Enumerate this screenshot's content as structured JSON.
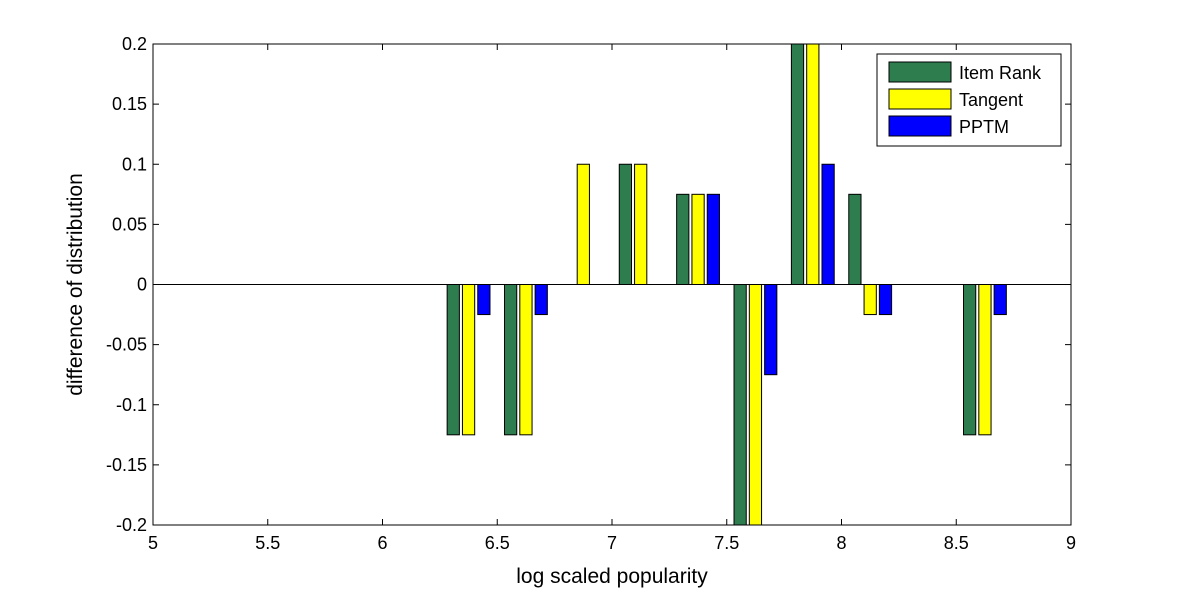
{
  "chart_data": {
    "type": "bar",
    "title": "",
    "xlabel": "log scaled popularity",
    "ylabel": "difference of distribution",
    "xlim": [
      5,
      9
    ],
    "ylim": [
      -0.2,
      0.2
    ],
    "xticks": [
      5,
      5.5,
      6,
      6.5,
      7,
      7.5,
      8,
      8.5,
      9
    ],
    "xtick_labels": [
      "5",
      "5.5",
      "6",
      "6.5",
      "7",
      "7.5",
      "8",
      "8.5",
      "9"
    ],
    "yticks": [
      0.2,
      0.15,
      0.1,
      0.05,
      0,
      -0.05,
      -0.1,
      -0.15,
      -0.2
    ],
    "ytick_labels": [
      "0.2",
      "0.15",
      "0.1",
      "0.05",
      "0",
      "-0.05",
      "-0.1",
      "-0.15",
      "-0.2"
    ],
    "x": [
      6.375,
      6.625,
      6.875,
      7.125,
      7.375,
      7.625,
      7.875,
      8.125,
      8.625
    ],
    "series": [
      {
        "name": "Item Rank",
        "color": "#2e7d4f",
        "values": [
          -0.125,
          -0.125,
          0,
          0.1,
          0.075,
          -0.2,
          0.2,
          0.075,
          -0.125
        ]
      },
      {
        "name": "Tangent",
        "color": "#ffff00",
        "values": [
          -0.125,
          -0.125,
          0.1,
          0.1,
          0.075,
          -0.2,
          0.2,
          -0.025,
          -0.125
        ]
      },
      {
        "name": "PPTM",
        "color": "#0000ff",
        "values": [
          -0.025,
          -0.025,
          0,
          0,
          0.075,
          -0.075,
          0.1,
          -0.025,
          -0.025
        ]
      }
    ],
    "legend_position": "top-right",
    "grid": false
  }
}
